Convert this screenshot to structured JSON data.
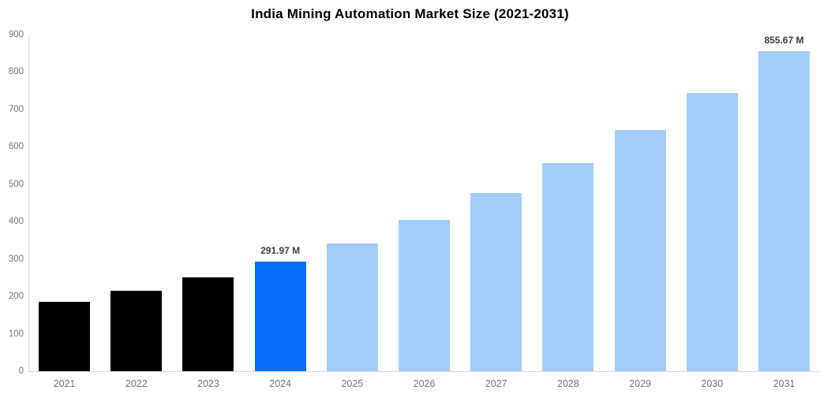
{
  "title": "India Mining Automation Market Size (2021-2031)",
  "chart_data": {
    "type": "bar",
    "title": "India Mining Automation Market Size (2021-2031)",
    "categories": [
      "2021",
      "2022",
      "2023",
      "2024",
      "2025",
      "2026",
      "2027",
      "2028",
      "2029",
      "2030",
      "2031"
    ],
    "values": [
      186,
      215,
      250,
      291.97,
      341,
      405,
      477,
      556,
      645,
      744,
      855.67
    ],
    "unit": "M",
    "data_labels": [
      {
        "index": 3,
        "text": "291.97 M"
      },
      {
        "index": 10,
        "text": "855.67 M"
      }
    ],
    "bar_colors": [
      "#000000",
      "#000000",
      "#000000",
      "#086cfb",
      "#a3cdfb",
      "#a3cdfb",
      "#a3cdfb",
      "#a3cdfb",
      "#a3cdfb",
      "#a3cdfb",
      "#a3cdfb"
    ],
    "xlabel": "",
    "ylabel": "",
    "ylim": [
      0,
      900
    ],
    "yticks": [
      0,
      100,
      200,
      300,
      400,
      500,
      600,
      700,
      800,
      900
    ],
    "grid": false,
    "legend": false,
    "background": "#ffffff"
  },
  "colors": {
    "axis_line": "#d9d9d9",
    "tick_label": "#757575",
    "value_label": "#3d3d3d",
    "title": "#000000"
  }
}
